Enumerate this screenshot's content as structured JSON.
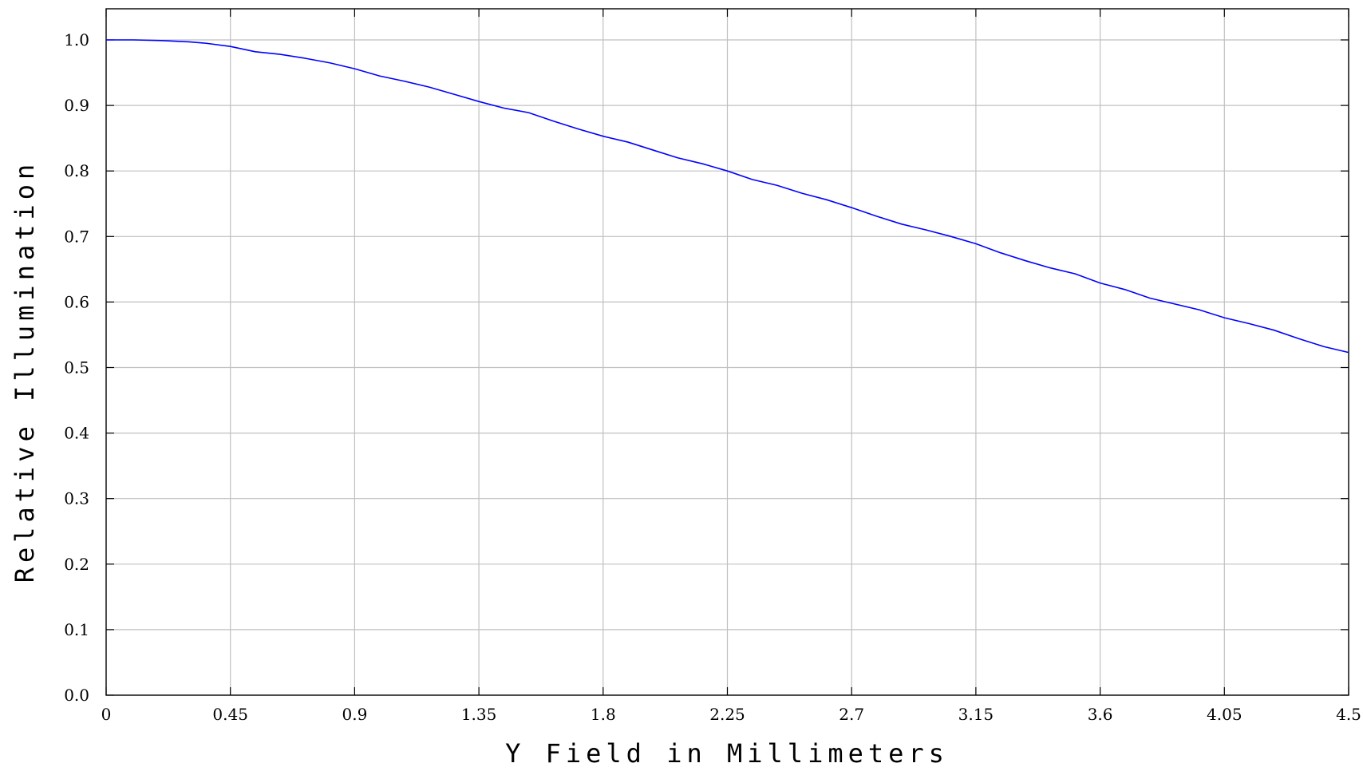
{
  "chart_data": {
    "type": "line",
    "xlabel": "Y Field in Millimeters",
    "ylabel": "Relative Illumination",
    "xlim": [
      0,
      4.5
    ],
    "ylim": [
      0,
      1.0
    ],
    "x_ticks": [
      "0",
      "0.45",
      "0.9",
      "1.35",
      "1.8",
      "2.25",
      "2.7",
      "3.15",
      "3.6",
      "4.05",
      "4.5"
    ],
    "y_ticks": [
      "0.0",
      "0.1",
      "0.2",
      "0.3",
      "0.4",
      "0.5",
      "0.6",
      "0.7",
      "0.8",
      "0.9",
      "1.0"
    ],
    "grid": true,
    "line_color": "#0000ff",
    "series": [
      {
        "x": [
          0,
          0.1,
          0.2,
          0.3,
          0.36,
          0.45,
          0.54,
          0.63,
          0.72,
          0.81,
          0.9,
          0.99,
          1.08,
          1.17,
          1.26,
          1.35,
          1.44,
          1.53,
          1.62,
          1.71,
          1.8,
          1.89,
          1.98,
          2.07,
          2.16,
          2.25,
          2.34,
          2.43,
          2.52,
          2.61,
          2.7,
          2.79,
          2.88,
          2.97,
          3.06,
          3.15,
          3.24,
          3.33,
          3.42,
          3.51,
          3.6,
          3.69,
          3.78,
          3.87,
          3.96,
          4.05,
          4.14,
          4.23,
          4.32,
          4.41,
          4.5
        ],
        "y": [
          1.0,
          1.0,
          0.999,
          0.997,
          0.995,
          0.99,
          0.982,
          0.978,
          0.972,
          0.965,
          0.956,
          0.945,
          0.937,
          0.928,
          0.917,
          0.906,
          0.896,
          0.889,
          0.876,
          0.864,
          0.853,
          0.844,
          0.832,
          0.82,
          0.811,
          0.8,
          0.787,
          0.778,
          0.766,
          0.756,
          0.744,
          0.731,
          0.719,
          0.71,
          0.7,
          0.689,
          0.675,
          0.663,
          0.652,
          0.643,
          0.629,
          0.619,
          0.606,
          0.597,
          0.588,
          0.576,
          0.567,
          0.557,
          0.544,
          0.532,
          0.523
        ]
      }
    ]
  }
}
